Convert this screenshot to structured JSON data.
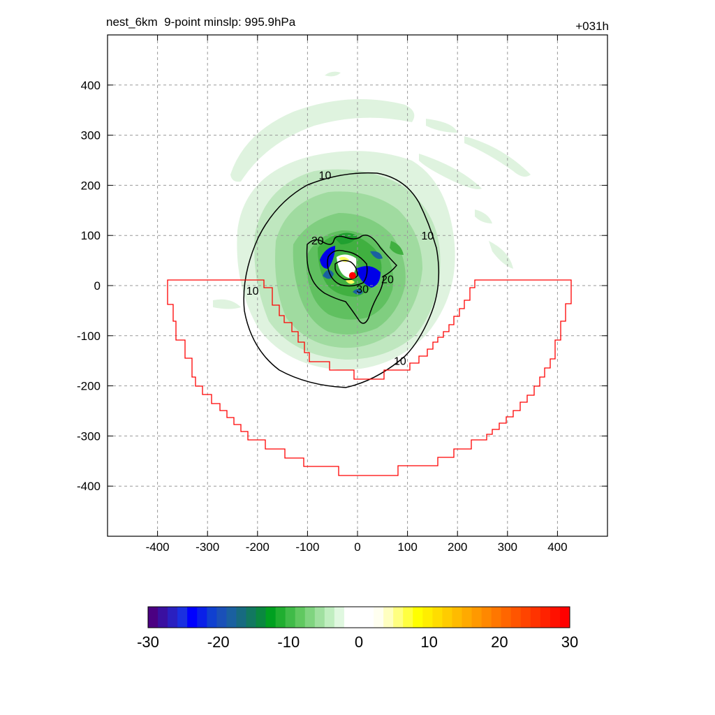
{
  "chart_data": {
    "type": "contour",
    "title_left": "nest_6km  9-point minslp: 995.9hPa",
    "title_right": "+031h",
    "xlim": [
      -500,
      500
    ],
    "ylim": [
      -500,
      500
    ],
    "x_ticks": [
      -400,
      -300,
      -200,
      -100,
      0,
      100,
      200,
      300,
      400
    ],
    "y_ticks": [
      400,
      300,
      200,
      100,
      0,
      -100,
      -200,
      -300,
      -400
    ],
    "grid": true,
    "contour_labels": [
      {
        "text": "10",
        "x": -65,
        "y": 215
      },
      {
        "text": "10",
        "x": 140,
        "y": 95
      },
      {
        "text": "10",
        "x": -210,
        "y": -15
      },
      {
        "text": "10",
        "x": 85,
        "y": -155
      },
      {
        "text": "20",
        "x": -80,
        "y": 85
      },
      {
        "text": "20",
        "x": 60,
        "y": 8
      },
      {
        "text": "30",
        "x": 10,
        "y": -12
      }
    ],
    "center_marker": {
      "x": -10,
      "y": 20,
      "color": "#ff0000"
    },
    "boundary_color": "#ff0000",
    "colorbar": {
      "min": -30,
      "max": 30,
      "ticks": [
        -30,
        -20,
        -10,
        0,
        10,
        20,
        30
      ],
      "colors": [
        "#4b0082",
        "#3a10a0",
        "#2a20c0",
        "#1a30e0",
        "#0000ff",
        "#0a20e8",
        "#1040d0",
        "#1a50b8",
        "#1a60a0",
        "#176a80",
        "#127860",
        "#0a8840",
        "#00a020",
        "#20ae30",
        "#40bb48",
        "#60c860",
        "#80d480",
        "#a0e0a0",
        "#c0eec0",
        "#e0f8e0",
        "#ffffff",
        "#ffffff",
        "#ffffff",
        "#fffff0",
        "#ffffc0",
        "#ffff80",
        "#ffff40",
        "#ffff00",
        "#ffee00",
        "#ffdd00",
        "#ffcc00",
        "#ffbb00",
        "#ffaa00",
        "#ff9900",
        "#ff8800",
        "#ff7700",
        "#ff6600",
        "#ff5500",
        "#ff4400",
        "#ff3300",
        "#ff2200",
        "#ff1100",
        "#ff0000"
      ]
    }
  }
}
